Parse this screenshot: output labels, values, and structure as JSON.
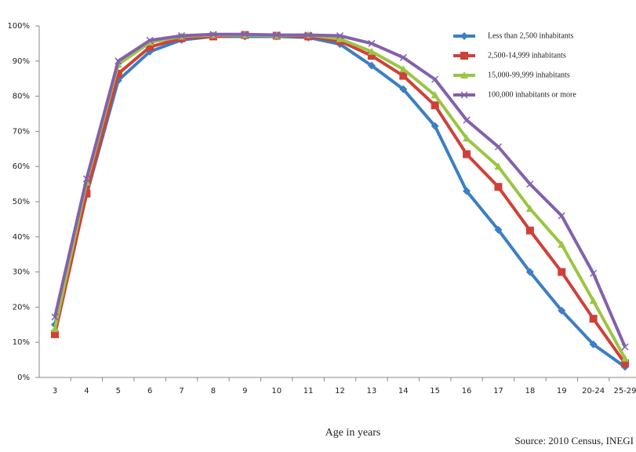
{
  "chart_data": {
    "type": "line",
    "x_label": "Age in years",
    "source": "Source: 2010 Census, INEGI",
    "categories": [
      "3",
      "4",
      "5",
      "6",
      "7",
      "8",
      "9",
      "10",
      "11",
      "12",
      "13",
      "14",
      "15",
      "16",
      "17",
      "18",
      "19",
      "20-24",
      "25-29"
    ],
    "series": [
      {
        "name": "Less than 2,500 inhabitants",
        "color": "#3b7fc4",
        "marker": "diamond",
        "values": [
          15,
          52,
          84.5,
          92.7,
          96,
          97,
          97,
          97,
          96.7,
          94.8,
          88.7,
          82,
          71.5,
          53,
          42,
          30,
          19,
          9.4,
          3
        ]
      },
      {
        "name": "2,500-14,999 inhabitants",
        "color": "#d0403a",
        "marker": "square",
        "values": [
          12.3,
          52.3,
          86.4,
          94,
          96.5,
          97,
          97.4,
          97.2,
          97,
          95.7,
          91.5,
          85.8,
          77.4,
          63.5,
          54.2,
          41.8,
          30,
          16.7,
          4
        ]
      },
      {
        "name": "15,000-99,999 inhabitants",
        "color": "#9bc542",
        "marker": "triangle",
        "values": [
          13.8,
          55.5,
          89,
          95.3,
          97,
          97.4,
          97.4,
          97.2,
          97.4,
          96.3,
          92.7,
          87.7,
          80.3,
          68,
          60,
          48,
          37.8,
          21.8,
          5.4
        ]
      },
      {
        "name": "100,000 inhabitants or more",
        "color": "#8460ad",
        "marker": "x",
        "values": [
          17.2,
          56.5,
          90,
          95.9,
          97.2,
          97.6,
          97.6,
          97.4,
          97.4,
          97.2,
          95,
          91,
          84.8,
          73.2,
          65.6,
          55,
          46,
          29.6,
          8.7
        ]
      }
    ],
    "ylim": [
      0,
      100
    ],
    "yticks": [
      {
        "value": 0,
        "label": "0%"
      },
      {
        "value": 10,
        "label": "10%"
      },
      {
        "value": 20,
        "label": "20%"
      },
      {
        "value": 30,
        "label": "30%"
      },
      {
        "value": 40,
        "label": "40%"
      },
      {
        "value": 50,
        "label": "50%"
      },
      {
        "value": 60,
        "label": "60%"
      },
      {
        "value": 70,
        "label": "70%"
      },
      {
        "value": 80,
        "label": "80%"
      },
      {
        "value": 90,
        "label": "90%"
      },
      {
        "value": 100,
        "label": "100%"
      }
    ],
    "legend": "upper right"
  }
}
